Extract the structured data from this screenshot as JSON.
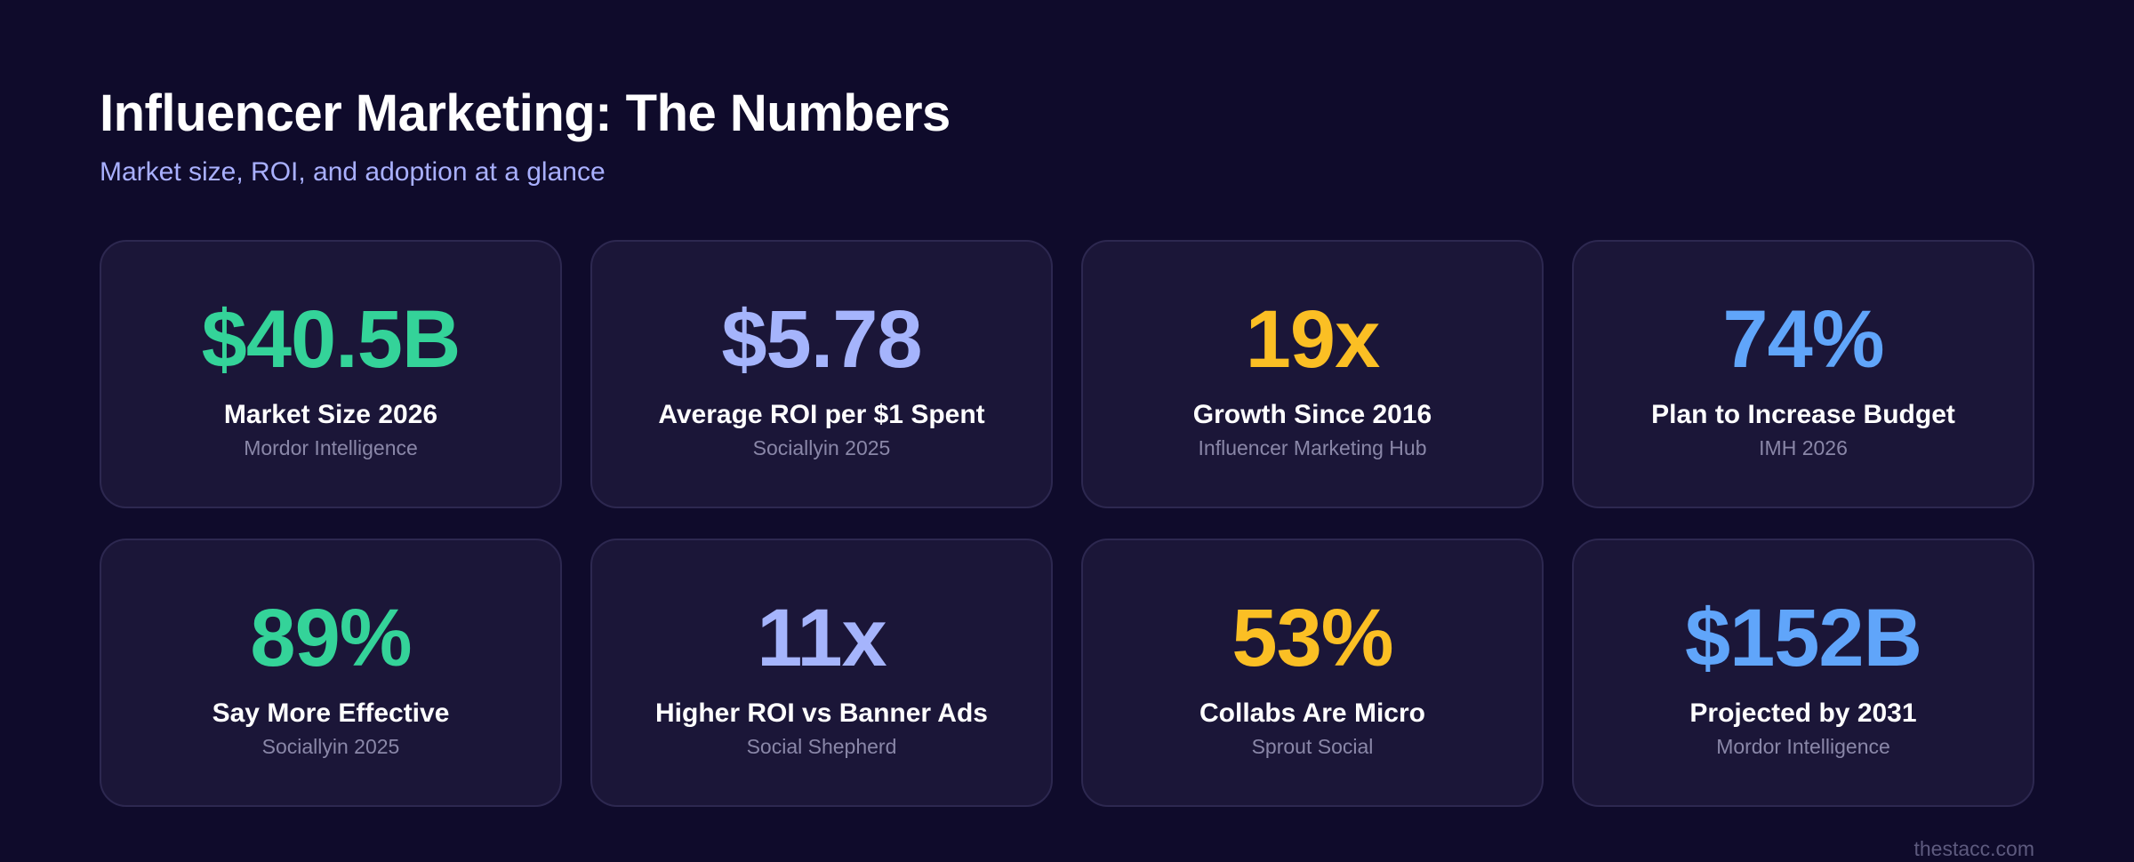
{
  "header": {
    "title": "Influencer Marketing: The Numbers",
    "subtitle": "Market size, ROI, and adoption at a glance"
  },
  "colors": {
    "background": "#0f0b2b",
    "card": "#1b1638",
    "green": "#34d399",
    "lavender": "#a5b4fc",
    "amber": "#fbbf24",
    "blue": "#60a5fa"
  },
  "stats": [
    {
      "value": "$40.5B",
      "label": "Market Size 2026",
      "source": "Mordor Intelligence",
      "color": "#34d399"
    },
    {
      "value": "$5.78",
      "label": "Average ROI per $1 Spent",
      "source": "Sociallyin 2025",
      "color": "#a5b4fc"
    },
    {
      "value": "19x",
      "label": "Growth Since 2016",
      "source": "Influencer Marketing Hub",
      "color": "#fbbf24"
    },
    {
      "value": "74%",
      "label": "Plan to Increase Budget",
      "source": "IMH 2026",
      "color": "#60a5fa"
    },
    {
      "value": "89%",
      "label": "Say More Effective",
      "source": "Sociallyin 2025",
      "color": "#34d399"
    },
    {
      "value": "11x",
      "label": "Higher ROI vs Banner Ads",
      "source": "Social Shepherd",
      "color": "#a5b4fc"
    },
    {
      "value": "53%",
      "label": "Collabs Are Micro",
      "source": "Sprout Social",
      "color": "#fbbf24"
    },
    {
      "value": "$152B",
      "label": "Projected by 2031",
      "source": "Mordor Intelligence",
      "color": "#60a5fa"
    }
  ],
  "footer": {
    "text": "thestacc.com"
  }
}
